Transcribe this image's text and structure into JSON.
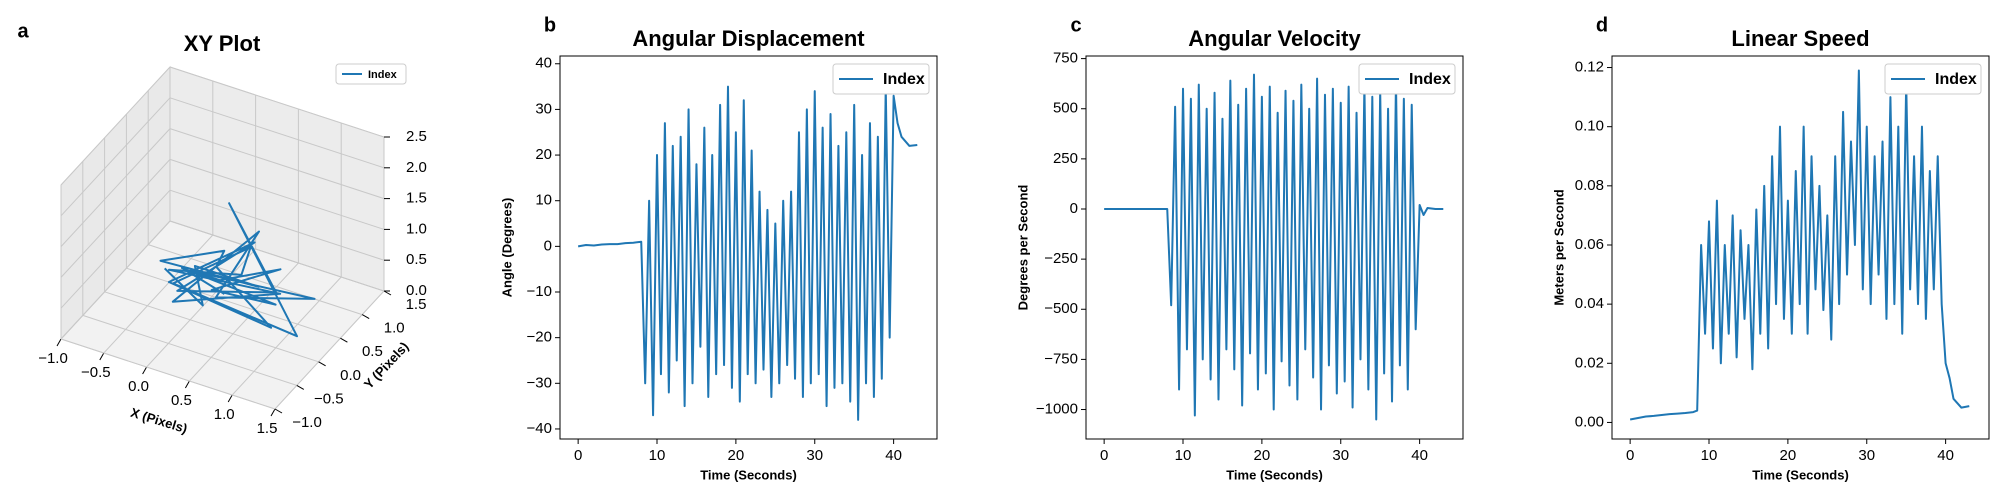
{
  "chart_data": [
    {
      "type": "line3d",
      "panel_label": "a",
      "title": "XY Plot",
      "xlabel": "X (Pixels)",
      "ylabel": "Y (Pixels)",
      "xlim": [
        -1,
        1.5
      ],
      "ylim": [
        -1,
        1.5
      ],
      "zlim": [
        0,
        2.5
      ],
      "xticks": [
        {
          "value": -1,
          "label": "−1.0"
        },
        {
          "value": -0.5,
          "label": "−0.5"
        },
        {
          "value": 0,
          "label": "0.0"
        },
        0.5,
        {
          "value": 1,
          "label": "1.0"
        },
        1.5
      ],
      "yticks": [
        {
          "value": -1,
          "label": "−1.0"
        },
        {
          "value": -0.5,
          "label": "−0.5"
        },
        {
          "value": 0,
          "label": "0.0"
        },
        0.5,
        {
          "value": 1,
          "label": "1.0"
        },
        1.5
      ],
      "zticks": [
        {
          "value": 0,
          "label": "0.0"
        },
        0.5,
        {
          "value": 1,
          "label": "1.0"
        },
        1.5,
        {
          "value": 2,
          "label": "2.0"
        },
        2.5
      ],
      "grid": true,
      "legend": "upper right",
      "series": [
        {
          "name": "Index",
          "color": "#1f77b4",
          "x": [
            -0.4,
            0.3,
            -0.2,
            0.8,
            -0.5,
            0.5,
            0.1,
            1.2,
            -0.3,
            0.6,
            -0.1,
            0.9,
            0.2,
            1.4,
            -0.2,
            0.4,
            0.7,
            -0.4,
            1.0,
            0.0,
            0.6,
            0.3,
            1.3,
            -0.1,
            0.5,
            0.8,
            0.2,
            1.1,
            -0.3,
            0.4
          ],
          "y": [
            0.2,
            -0.3,
            0.5,
            0.0,
            0.3,
            -0.2,
            0.4,
            -0.5,
            0.1,
            0.3,
            -0.1,
            0.2,
            0.5,
            -0.3,
            0.0,
            0.6,
            -0.2,
            0.3,
            0.1,
            -0.4,
            0.4,
            0.0,
            0.3,
            0.2,
            -0.3,
            0.5,
            0.1,
            -0.2,
            0.4,
            0.0
          ],
          "z": [
            0.5,
            0.6,
            0.4,
            0.9,
            0.5,
            1.5,
            0.6,
            0.8,
            0.4,
            1.3,
            0.5,
            0.7,
            1.6,
            0.6,
            0.5,
            0.9,
            1.2,
            0.4,
            0.8,
            0.6,
            1.4,
            0.5,
            0.7,
            0.6,
            1.1,
            0.8,
            0.5,
            0.9,
            0.4,
            0.6
          ]
        }
      ]
    },
    {
      "type": "line",
      "panel_label": "b",
      "title": "Angular Displacement",
      "xlabel": "Time (Seconds)",
      "ylabel": "Angle (Degrees)",
      "xlim": [
        -2.3,
        45.5
      ],
      "ylim": [
        -42.2,
        41.7
      ],
      "xticks": [
        0,
        10,
        20,
        30,
        40
      ],
      "yticks": [
        {
          "value": -40,
          "label": "−40"
        },
        {
          "value": -30,
          "label": "−30"
        },
        {
          "value": -20,
          "label": "−20"
        },
        {
          "value": -10,
          "label": "−10"
        },
        0,
        10,
        20,
        30,
        40
      ],
      "grid": false,
      "legend": "upper right",
      "x": [
        0,
        1,
        2,
        3,
        4,
        5,
        6,
        7,
        8,
        8.5,
        9,
        9.5,
        10,
        10.5,
        11,
        11.5,
        12,
        12.5,
        13,
        13.5,
        14,
        14.5,
        15,
        15.5,
        16,
        16.5,
        17,
        17.5,
        18,
        18.5,
        19,
        19.5,
        20,
        20.5,
        21,
        21.5,
        22,
        22.5,
        23,
        23.5,
        24,
        24.5,
        25,
        25.5,
        26,
        26.5,
        27,
        27.5,
        28,
        28.5,
        29,
        29.5,
        30,
        30.5,
        31,
        31.5,
        32,
        32.5,
        33,
        33.5,
        34,
        34.5,
        35,
        35.5,
        36,
        36.5,
        37,
        37.5,
        38,
        38.5,
        39,
        39.5,
        40,
        40.5,
        41,
        42,
        43
      ],
      "series": [
        {
          "name": "Index",
          "color": "#1f77b4",
          "values": [
            0,
            0.3,
            0.2,
            0.4,
            0.5,
            0.5,
            0.7,
            0.8,
            1.0,
            -30,
            10,
            -37,
            20,
            -28,
            27,
            -32,
            22,
            -25,
            24,
            -35,
            30,
            -30,
            18,
            -22,
            26,
            -33,
            20,
            -28,
            31,
            -26,
            35,
            -31,
            25,
            -34,
            32,
            -28,
            21,
            -30,
            12,
            -27,
            8,
            -33,
            5,
            -30,
            10,
            -26,
            12,
            -29,
            25,
            -33,
            30,
            -30,
            34,
            -28,
            26,
            -35,
            29,
            -31,
            22,
            -30,
            25,
            -34,
            31,
            -38,
            20,
            -30,
            27,
            -33,
            24,
            -29,
            35,
            -20,
            33,
            27,
            24,
            22,
            22.2
          ]
        }
      ]
    },
    {
      "type": "line",
      "panel_label": "c",
      "title": "Angular Velocity",
      "xlabel": "Time (Seconds)",
      "ylabel": "Degrees per Second",
      "xlim": [
        -2.3,
        45.5
      ],
      "ylim": [
        -1147,
        763
      ],
      "xticks": [
        0,
        10,
        20,
        30,
        40
      ],
      "yticks": [
        {
          "value": -1000,
          "label": "−1000"
        },
        {
          "value": -750,
          "label": "−750"
        },
        {
          "value": -500,
          "label": "−500"
        },
        {
          "value": -250,
          "label": "−250"
        },
        0,
        250,
        500,
        750
      ],
      "grid": false,
      "legend": "upper right",
      "x": [
        0,
        1,
        2,
        3,
        4,
        5,
        6,
        7,
        8,
        8.5,
        9,
        9.5,
        10,
        10.5,
        11,
        11.5,
        12,
        12.5,
        13,
        13.5,
        14,
        14.5,
        15,
        15.5,
        16,
        16.5,
        17,
        17.5,
        18,
        18.5,
        19,
        19.5,
        20,
        20.5,
        21,
        21.5,
        22,
        22.5,
        23,
        23.5,
        24,
        24.5,
        25,
        25.5,
        26,
        26.5,
        27,
        27.5,
        28,
        28.5,
        29,
        29.5,
        30,
        30.5,
        31,
        31.5,
        32,
        32.5,
        33,
        33.5,
        34,
        34.5,
        35,
        35.5,
        36,
        36.5,
        37,
        37.5,
        38,
        38.5,
        39,
        39.5,
        40,
        40.5,
        41,
        42,
        43
      ],
      "series": [
        {
          "name": "Index",
          "color": "#1f77b4",
          "values": [
            0,
            0,
            0,
            0,
            0,
            0,
            0,
            0,
            0,
            -480,
            510,
            -900,
            600,
            -700,
            550,
            -1030,
            620,
            -750,
            500,
            -850,
            580,
            -950,
            450,
            -700,
            640,
            -800,
            520,
            -980,
            600,
            -720,
            670,
            -900,
            560,
            -820,
            610,
            -1000,
            480,
            -760,
            590,
            -880,
            540,
            -950,
            620,
            -700,
            500,
            -840,
            650,
            -1000,
            570,
            -780,
            600,
            -920,
            530,
            -860,
            610,
            -990,
            480,
            -750,
            620,
            -900,
            560,
            -1050,
            590,
            -820,
            500,
            -960,
            640,
            -780,
            550,
            -900,
            520,
            -600,
            20,
            -30,
            5,
            0,
            0
          ]
        }
      ]
    },
    {
      "type": "line",
      "panel_label": "d",
      "title": "Linear Speed",
      "xlabel": "Time (Seconds)",
      "ylabel": "Meters per Second",
      "xlim": [
        -2.3,
        45.5
      ],
      "ylim": [
        -0.0056,
        0.1239
      ],
      "xticks": [
        0,
        10,
        20,
        30,
        40
      ],
      "yticks": [
        {
          "value": 0,
          "label": "0.00"
        },
        0.02,
        0.04,
        0.06,
        0.08,
        {
          "value": 0.1,
          "label": "0.10"
        },
        0.12
      ],
      "grid": false,
      "legend": "upper right",
      "x": [
        0,
        1,
        2,
        3,
        4,
        5,
        6,
        7,
        8,
        8.5,
        9,
        9.5,
        10,
        10.5,
        11,
        11.5,
        12,
        12.5,
        13,
        13.5,
        14,
        14.5,
        15,
        15.5,
        16,
        16.5,
        17,
        17.5,
        18,
        18.5,
        19,
        19.5,
        20,
        20.5,
        21,
        21.5,
        22,
        22.5,
        23,
        23.5,
        24,
        24.5,
        25,
        25.5,
        26,
        26.5,
        27,
        27.5,
        28,
        28.5,
        29,
        29.5,
        30,
        30.5,
        31,
        31.5,
        32,
        32.5,
        33,
        33.5,
        34,
        34.5,
        35,
        35.5,
        36,
        36.5,
        37,
        37.5,
        38,
        38.5,
        39,
        39.5,
        40,
        40.5,
        41,
        42,
        43
      ],
      "series": [
        {
          "name": "Index",
          "color": "#1f77b4",
          "values": [
            0.001,
            0.0015,
            0.002,
            0.0022,
            0.0025,
            0.0028,
            0.003,
            0.0032,
            0.0035,
            0.004,
            0.06,
            0.03,
            0.068,
            0.025,
            0.075,
            0.02,
            0.06,
            0.03,
            0.07,
            0.022,
            0.065,
            0.035,
            0.06,
            0.018,
            0.072,
            0.03,
            0.08,
            0.025,
            0.09,
            0.04,
            0.1,
            0.035,
            0.075,
            0.03,
            0.085,
            0.04,
            0.1,
            0.03,
            0.09,
            0.045,
            0.08,
            0.038,
            0.07,
            0.028,
            0.09,
            0.04,
            0.105,
            0.05,
            0.095,
            0.06,
            0.119,
            0.045,
            0.1,
            0.04,
            0.09,
            0.05,
            0.095,
            0.035,
            0.11,
            0.04,
            0.1,
            0.03,
            0.115,
            0.045,
            0.09,
            0.04,
            0.1,
            0.035,
            0.085,
            0.045,
            0.09,
            0.04,
            0.02,
            0.015,
            0.008,
            0.005,
            0.0055
          ]
        }
      ]
    }
  ]
}
